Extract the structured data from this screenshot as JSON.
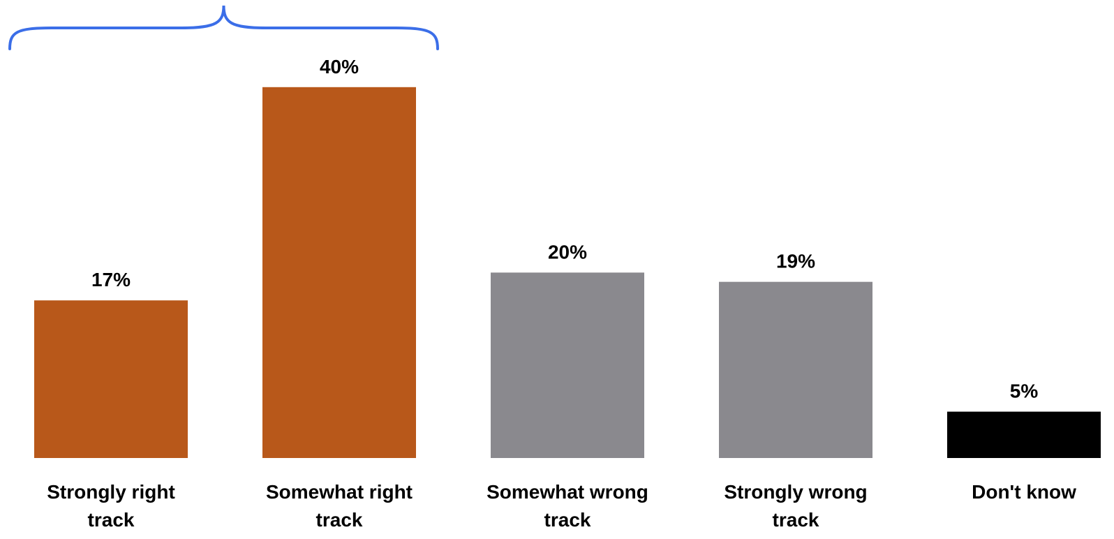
{
  "chart_data": {
    "type": "bar",
    "title": "",
    "xlabel": "",
    "ylabel": "",
    "ylim": [
      0,
      40
    ],
    "grid": false,
    "legend": "none",
    "categories": [
      "Strongly right track",
      "Somewhat right track",
      "Somewhat wrong track",
      "Strongly wrong track",
      "Don't know"
    ],
    "values": [
      17,
      40,
      20,
      19,
      5
    ],
    "value_labels": [
      "17%",
      "40%",
      "20%",
      "19%",
      "5%"
    ],
    "bar_colors": [
      "#B8581A",
      "#B8581A",
      "#8A898E",
      "#8A898E",
      "#000000"
    ],
    "annotation": {
      "type": "brace",
      "spans_categories": [
        "Strongly right track",
        "Somewhat right track"
      ],
      "color": "#3B6EE8"
    }
  }
}
